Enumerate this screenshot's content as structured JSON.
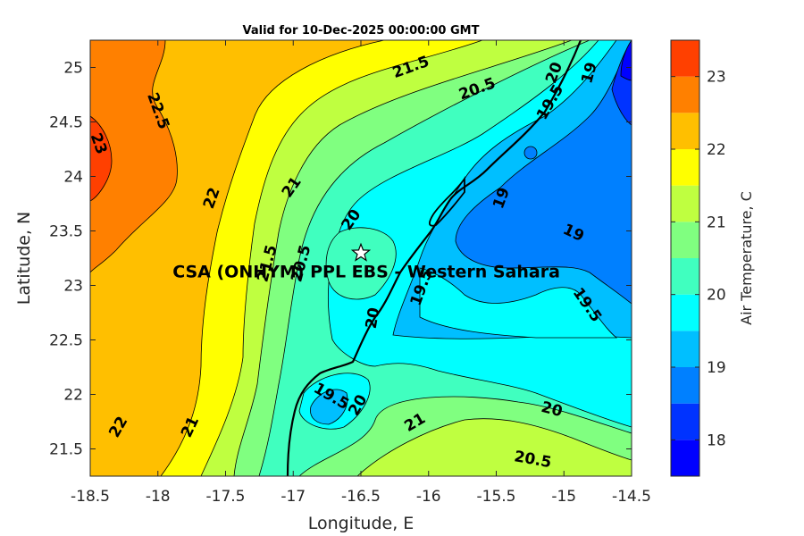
{
  "chart_data": {
    "type": "filled-contour map",
    "title": "Valid for 10-Dec-2025 00:00:00 GMT",
    "xlabel": "Longitude, E",
    "ylabel": "Latitude, N",
    "xlim": [
      -18.5,
      -14.5
    ],
    "ylim": [
      21.25,
      25.25
    ],
    "xticks": [
      -18.5,
      -18,
      -17.5,
      -17,
      -16.5,
      -16,
      -15.5,
      -15,
      -14.5
    ],
    "xtick_labels": [
      "-18.5",
      "-18",
      "-17.5",
      "-17",
      "-16.5",
      "-16",
      "-15.5",
      "-15",
      "-14.5"
    ],
    "yticks": [
      21.5,
      22,
      22.5,
      23,
      23.5,
      24,
      24.5,
      25
    ],
    "ytick_labels": [
      "21.5",
      "22",
      "22.5",
      "23",
      "23.5",
      "24",
      "24.5",
      "25"
    ],
    "colorbar": {
      "label": "Air Temperature, C",
      "range": [
        17.5,
        23.5
      ],
      "ticks": [
        18,
        19,
        20,
        21,
        22,
        23
      ],
      "tick_labels": [
        "18",
        "19",
        "20",
        "21",
        "22",
        "23"
      ],
      "levels": [
        {
          "min": 17.5,
          "max": 18.0,
          "color": "#0000ff"
        },
        {
          "min": 18.0,
          "max": 18.5,
          "color": "#0033ff"
        },
        {
          "min": 18.5,
          "max": 19.0,
          "color": "#0080ff"
        },
        {
          "min": 19.0,
          "max": 19.5,
          "color": "#00bfff"
        },
        {
          "min": 19.5,
          "max": 20.0,
          "color": "#00ffff"
        },
        {
          "min": 20.0,
          "max": 20.5,
          "color": "#40ffbf"
        },
        {
          "min": 20.5,
          "max": 21.0,
          "color": "#80ff80"
        },
        {
          "min": 21.0,
          "max": 21.5,
          "color": "#bfff40"
        },
        {
          "min": 21.5,
          "max": 22.0,
          "color": "#ffff00"
        },
        {
          "min": 22.0,
          "max": 22.5,
          "color": "#ffbf00"
        },
        {
          "min": 22.5,
          "max": 23.0,
          "color": "#ff8000"
        },
        {
          "min": 23.0,
          "max": 23.5,
          "color": "#ff4000"
        },
        {
          "min": 23.5,
          "max": 24.0,
          "color": "#ff0000"
        }
      ]
    },
    "contour_labels": [
      {
        "text": "23",
        "lon": -18.44,
        "lat": 24.3,
        "rotation": 70
      },
      {
        "text": "22.5",
        "lon": -18.0,
        "lat": 24.6,
        "rotation": 70
      },
      {
        "text": "22",
        "lon": -17.6,
        "lat": 23.8,
        "rotation": -70
      },
      {
        "text": "22",
        "lon": -18.29,
        "lat": 21.7,
        "rotation": -60
      },
      {
        "text": "21.5",
        "lon": -17.19,
        "lat": 23.2,
        "rotation": -75
      },
      {
        "text": "21",
        "lon": -17.01,
        "lat": 23.9,
        "rotation": -55
      },
      {
        "text": "21",
        "lon": -17.76,
        "lat": 21.7,
        "rotation": -65
      },
      {
        "text": "21.5",
        "lon": -16.13,
        "lat": 25.0,
        "rotation": -20
      },
      {
        "text": "20.5",
        "lon": -16.94,
        "lat": 23.2,
        "rotation": -75
      },
      {
        "text": "20.5",
        "lon": -15.64,
        "lat": 24.8,
        "rotation": -20
      },
      {
        "text": "20",
        "lon": -16.57,
        "lat": 23.6,
        "rotation": -55
      },
      {
        "text": "20",
        "lon": -16.41,
        "lat": 22.7,
        "rotation": -80
      },
      {
        "text": "20",
        "lon": -16.52,
        "lat": 21.9,
        "rotation": -60
      },
      {
        "text": "20",
        "lon": -15.09,
        "lat": 21.86,
        "rotation": 15
      },
      {
        "text": "20",
        "lon": -15.07,
        "lat": 24.95,
        "rotation": -70
      },
      {
        "text": "20.5",
        "lon": -15.23,
        "lat": 21.4,
        "rotation": 10
      },
      {
        "text": "21",
        "lon": -16.1,
        "lat": 21.74,
        "rotation": -30
      },
      {
        "text": "19.5",
        "lon": -16.72,
        "lat": 21.98,
        "rotation": 30
      },
      {
        "text": "19.5",
        "lon": -16.05,
        "lat": 22.98,
        "rotation": -70
      },
      {
        "text": "19.5",
        "lon": -15.1,
        "lat": 24.68,
        "rotation": -60
      },
      {
        "text": "19.5",
        "lon": -14.83,
        "lat": 22.82,
        "rotation": 55
      },
      {
        "text": "19",
        "lon": -15.46,
        "lat": 23.8,
        "rotation": -70
      },
      {
        "text": "19",
        "lon": -14.93,
        "lat": 23.48,
        "rotation": 25
      },
      {
        "text": "19",
        "lon": -14.81,
        "lat": 24.95,
        "rotation": -75
      }
    ],
    "annotations": [
      {
        "text": "CSA (ONHYM) PPL EBS - Western Sahara",
        "lon": -16.5,
        "lat": 23.19,
        "marker": "star"
      }
    ]
  }
}
